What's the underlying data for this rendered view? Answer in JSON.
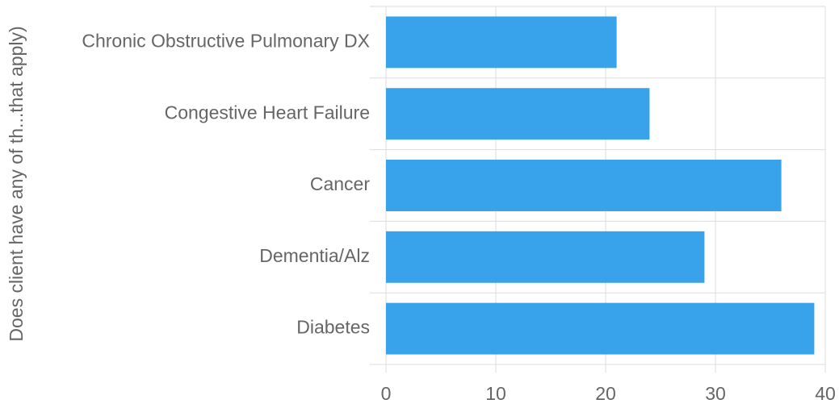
{
  "chart_data": {
    "type": "bar",
    "orientation": "horizontal",
    "y_label": "Does client have any of th...that apply)",
    "categories": [
      "Chronic Obstructive Pulmonary DX",
      "Congestive Heart Failure",
      "Cancer",
      "Dementia/Alz",
      "Diabetes"
    ],
    "values": [
      21,
      24,
      36,
      29,
      39
    ],
    "color": "#38a2ea",
    "xlim": [
      0,
      40
    ],
    "xticks": [
      0,
      10,
      20,
      30,
      40
    ],
    "grid": true
  }
}
